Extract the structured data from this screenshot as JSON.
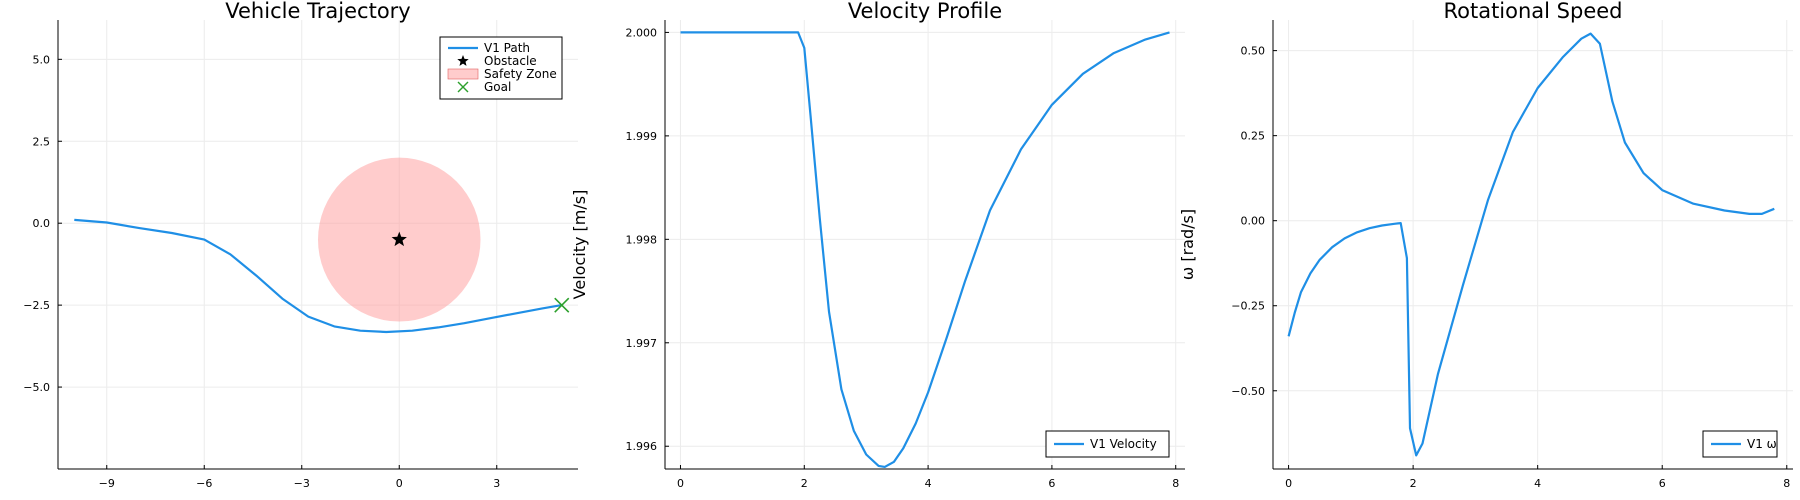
{
  "colors": {
    "line": "#1f8fe6",
    "zone_fill": "#ff9a9a",
    "obstacle": "#000000",
    "goal": "#2ca02c",
    "grid": "#ececec"
  },
  "chart_data": [
    {
      "type": "line",
      "title": "Vehicle Trajectory",
      "xlabel": "",
      "ylabel": "",
      "xlim": [
        -10.5,
        5.5
      ],
      "ylim": [
        -7.5,
        6.2
      ],
      "xticks": [
        -9,
        -6,
        -3,
        0,
        3
      ],
      "xtick_labels": [
        "−9",
        "−6",
        "−3",
        "0",
        "3"
      ],
      "yticks": [
        -5,
        -2.5,
        0,
        2.5,
        5
      ],
      "ytick_labels": [
        "−5.0",
        "−2.5",
        "0.0",
        "2.5",
        "5.0"
      ],
      "grid": true,
      "legend_position": "top-right",
      "series": [
        {
          "name": "V1 Path",
          "kind": "line",
          "x": [
            -10,
            -9,
            -8,
            -7,
            -6,
            -5.2,
            -4.4,
            -3.6,
            -2.8,
            -2,
            -1.2,
            -0.4,
            0.4,
            1.2,
            2,
            2.8,
            3.6,
            4.4,
            5
          ],
          "y": [
            0.1,
            0.02,
            -0.15,
            -0.3,
            -0.5,
            -0.95,
            -1.6,
            -2.3,
            -2.85,
            -3.15,
            -3.28,
            -3.32,
            -3.28,
            -3.18,
            -3.05,
            -2.9,
            -2.75,
            -2.6,
            -2.5
          ]
        }
      ],
      "markers": [
        {
          "name": "Obstacle",
          "kind": "star",
          "x": 0,
          "y": -0.5
        },
        {
          "name": "Goal",
          "kind": "cross",
          "x": 5,
          "y": -2.5
        }
      ],
      "zones": [
        {
          "name": "Safety Zone",
          "cx": 0,
          "cy": -0.5,
          "r": 2.5
        }
      ]
    },
    {
      "type": "line",
      "title": "Velocity Profile",
      "xlabel": "",
      "ylabel": "Velocity [m/s]",
      "xlim": [
        -0.25,
        8.15
      ],
      "ylim": [
        1.99578,
        2.00012
      ],
      "xticks": [
        0,
        2,
        4,
        6,
        8
      ],
      "xtick_labels": [
        "0",
        "2",
        "4",
        "6",
        "8"
      ],
      "yticks": [
        1.996,
        1.997,
        1.998,
        1.999,
        2.0
      ],
      "ytick_labels": [
        "1.996",
        "1.997",
        "1.998",
        "1.999",
        "2.000"
      ],
      "grid": true,
      "legend_position": "bottom-right",
      "series": [
        {
          "name": "V1 Velocity",
          "kind": "line",
          "x": [
            0,
            1.9,
            2.0,
            2.1,
            2.25,
            2.4,
            2.6,
            2.8,
            3.0,
            3.2,
            3.3,
            3.45,
            3.6,
            3.8,
            4.0,
            4.3,
            4.6,
            5.0,
            5.5,
            6.0,
            6.5,
            7.0,
            7.5,
            7.9
          ],
          "y": [
            2.0,
            2.0,
            1.99985,
            1.9992,
            1.9982,
            1.9973,
            1.99655,
            1.99615,
            1.99592,
            1.99581,
            1.9958,
            1.99585,
            1.99598,
            1.99622,
            1.99652,
            1.99705,
            1.9976,
            1.99828,
            1.99887,
            1.9993,
            1.9996,
            1.9998,
            1.99993,
            2.0
          ]
        }
      ]
    },
    {
      "type": "line",
      "title": "Rotational Speed",
      "xlabel": "",
      "ylabel": "ω [rad/s]",
      "xlim": [
        -0.25,
        8.1
      ],
      "ylim": [
        -0.73,
        0.59
      ],
      "xticks": [
        0,
        2,
        4,
        6,
        8
      ],
      "xtick_labels": [
        "0",
        "2",
        "4",
        "6",
        "8"
      ],
      "yticks": [
        -0.5,
        -0.25,
        0,
        0.25,
        0.5
      ],
      "ytick_labels": [
        "−0.50",
        "−0.25",
        "0.00",
        "0.25",
        "0.50"
      ],
      "grid": true,
      "legend_position": "bottom-right",
      "series": [
        {
          "name": "V1 ω",
          "kind": "line",
          "x": [
            0,
            0.1,
            0.2,
            0.35,
            0.5,
            0.7,
            0.9,
            1.1,
            1.3,
            1.5,
            1.7,
            1.8,
            1.9,
            1.95,
            2.05,
            2.15,
            2.4,
            2.8,
            3.2,
            3.6,
            4.0,
            4.4,
            4.7,
            4.85,
            4.9,
            5.0,
            5.2,
            5.4,
            5.7,
            6.0,
            6.5,
            7.0,
            7.4,
            7.6,
            7.8
          ],
          "y": [
            -0.34,
            -0.27,
            -0.21,
            -0.155,
            -0.115,
            -0.078,
            -0.052,
            -0.034,
            -0.022,
            -0.014,
            -0.009,
            -0.007,
            -0.11,
            -0.61,
            -0.69,
            -0.655,
            -0.45,
            -0.19,
            0.06,
            0.26,
            0.39,
            0.48,
            0.535,
            0.55,
            0.54,
            0.52,
            0.35,
            0.23,
            0.14,
            0.09,
            0.05,
            0.03,
            0.02,
            0.02,
            0.035
          ]
        }
      ]
    }
  ]
}
